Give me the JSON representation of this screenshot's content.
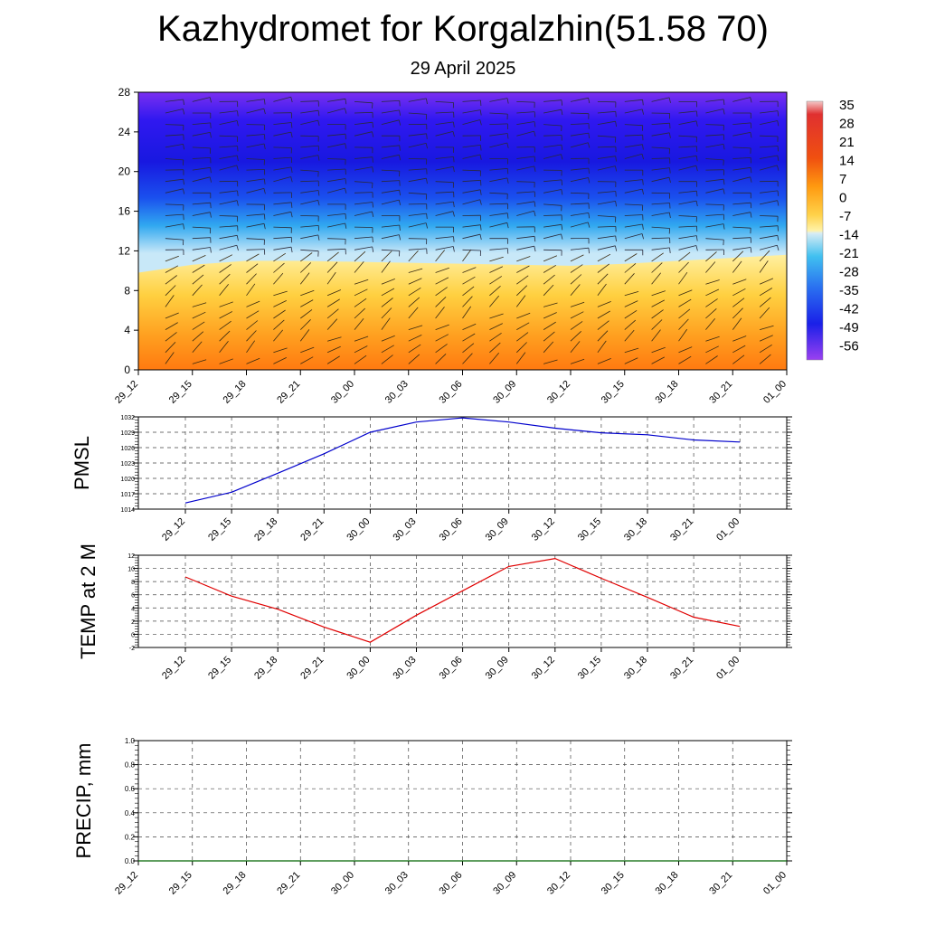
{
  "title": "Kazhydromet for Korgalzhin(51.58 70)",
  "subtitle": "29 April 2025",
  "colors": {
    "pmsl_line": "#0000cc",
    "temp_line": "#e00000",
    "precip_line": "#006400"
  },
  "time_labels": [
    "29_12",
    "29_15",
    "29_18",
    "29_21",
    "30_00",
    "30_03",
    "30_06",
    "30_09",
    "30_12",
    "30_15",
    "30_18",
    "30_21",
    "01_00"
  ],
  "chart_data": [
    {
      "id": "profile",
      "type": "heatmap",
      "description_axis": "height levels",
      "y_ticks": [
        "0",
        "4",
        "8",
        "12",
        "16",
        "20",
        "24",
        "28"
      ],
      "ylim": [
        0,
        28
      ],
      "x_ticks": [
        "29_12",
        "29_15",
        "29_18",
        "29_21",
        "30_00",
        "30_03",
        "30_06",
        "30_09",
        "30_12",
        "30_15",
        "30_18",
        "30_21",
        "01_00"
      ],
      "colorbar_labels": [
        "35",
        "28",
        "21",
        "14",
        "7",
        "0",
        "-7",
        "-14",
        "-21",
        "-28",
        "-35",
        "-42",
        "-49",
        "-56"
      ],
      "colorbar_range": [
        -63,
        42
      ],
      "freezing_level": [
        9.8,
        10.6,
        11.0,
        11.0,
        10.9,
        10.8,
        10.7,
        10.6,
        10.5,
        10.7,
        11.0,
        11.3,
        11.6
      ],
      "shading": "warm orange near ground, yellow below freezing level, cyan-blue above, deep blue-violet aloft",
      "wind_barbs": true
    },
    {
      "id": "pmsl",
      "type": "line",
      "ylabel": "PMSL",
      "y_ticks": [
        "1014",
        "1017",
        "1020",
        "1023",
        "1026",
        "1029",
        "1032"
      ],
      "ylim": [
        1014,
        1032
      ],
      "x_ticks": [
        "29_12",
        "29_15",
        "29_18",
        "29_21",
        "30_00",
        "30_03",
        "30_06",
        "30_09",
        "30_12",
        "30_15",
        "30_18",
        "30_21",
        "01_00"
      ],
      "values": [
        1015.2,
        1017.3,
        1021.0,
        1024.8,
        1029.0,
        1031.0,
        1031.8,
        1031.0,
        1029.8,
        1028.9,
        1028.5,
        1027.5,
        1027.1
      ]
    },
    {
      "id": "temp",
      "type": "line",
      "ylabel": "TEMP at 2 M",
      "y_ticks": [
        "-2",
        "0",
        "2",
        "4",
        "6",
        "8",
        "10",
        "12"
      ],
      "ylim": [
        -2,
        12
      ],
      "x_ticks": [
        "29_12",
        "29_15",
        "29_18",
        "29_21",
        "30_00",
        "30_03",
        "30_06",
        "30_09",
        "30_12",
        "30_15",
        "30_18",
        "30_21",
        "01_00"
      ],
      "values": [
        8.7,
        5.8,
        3.8,
        1.1,
        -1.2,
        2.9,
        6.6,
        10.3,
        11.5,
        8.5,
        5.6,
        2.6,
        1.2
      ]
    },
    {
      "id": "precip",
      "type": "line",
      "ylabel": "PRECIP, mm",
      "y_ticks": [
        "0.0",
        "0.2",
        "0.4",
        "0.6",
        "0.8",
        "1.0"
      ],
      "ylim": [
        0,
        1
      ],
      "x_ticks": [
        "29_12",
        "29_15",
        "29_18",
        "29_21",
        "30_00",
        "30_03",
        "30_06",
        "30_09",
        "30_12",
        "30_15",
        "30_18",
        "30_21",
        "01_00"
      ],
      "values": [
        0,
        0,
        0,
        0,
        0,
        0,
        0,
        0,
        0,
        0,
        0,
        0,
        0
      ]
    }
  ]
}
